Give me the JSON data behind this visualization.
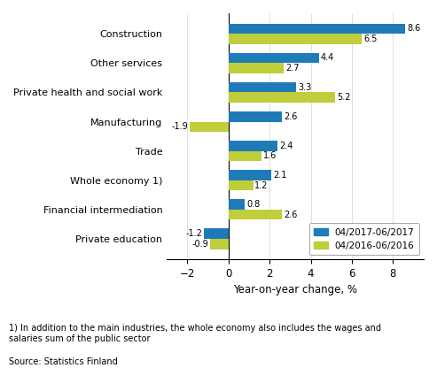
{
  "categories": [
    "Construction",
    "Other services",
    "Private health and social work",
    "Manufacturing",
    "Trade",
    "Whole economy 1)",
    "Financial intermediation",
    "Private education"
  ],
  "series_2017": [
    8.6,
    4.4,
    3.3,
    2.6,
    2.4,
    2.1,
    0.8,
    -1.2
  ],
  "series_2016": [
    6.5,
    2.7,
    5.2,
    -1.9,
    1.6,
    1.2,
    2.6,
    -0.9
  ],
  "color_2017": "#1F7BB8",
  "color_2016": "#BFCE3A",
  "xlabel": "Year-on-year change, %",
  "legend_2017": "04/2017-06/2017",
  "legend_2016": "04/2016-06/2016",
  "xlim": [
    -3,
    9.5
  ],
  "xticks": [
    -2,
    0,
    2,
    4,
    6,
    8
  ],
  "footnote1": "1) In addition to the main industries, the whole economy also includes the wages and\nsalaries sum of the public sector",
  "footnote2": "Source: Statistics Finland"
}
